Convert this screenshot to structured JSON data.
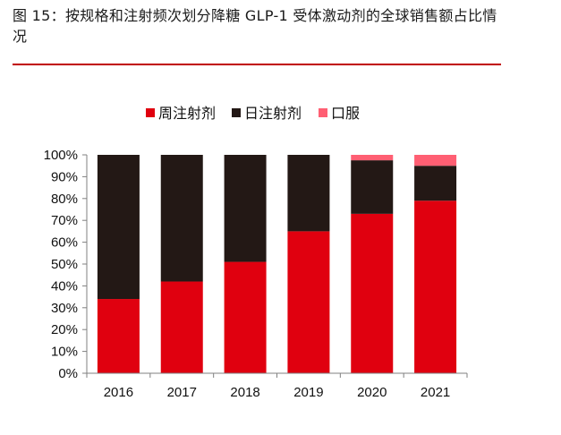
{
  "figure": {
    "title": "图 15：按规格和注射频次划分降糖 GLP-1 受体激动剂的全球销售额占比情况"
  },
  "colors": {
    "accent_rule": "#c00000",
    "axis": "#808080"
  },
  "chart_data": {
    "type": "bar",
    "stacked": true,
    "categories": [
      "2016",
      "2017",
      "2018",
      "2019",
      "2020",
      "2021"
    ],
    "series": [
      {
        "name": "周注射剂",
        "color": "#e0000f",
        "values": [
          34,
          42,
          51,
          65,
          73,
          79
        ]
      },
      {
        "name": "日注射剂",
        "color": "#231815",
        "values": [
          66,
          58,
          49,
          35,
          24.5,
          16
        ]
      },
      {
        "name": "口服",
        "color": "#ff5f73",
        "values": [
          0,
          0,
          0,
          0,
          2.5,
          5
        ]
      }
    ],
    "ylim": [
      0,
      100
    ],
    "yticks": [
      "0%",
      "10%",
      "20%",
      "30%",
      "40%",
      "50%",
      "60%",
      "70%",
      "80%",
      "90%",
      "100%"
    ],
    "grid": false,
    "legend_position": "top"
  }
}
